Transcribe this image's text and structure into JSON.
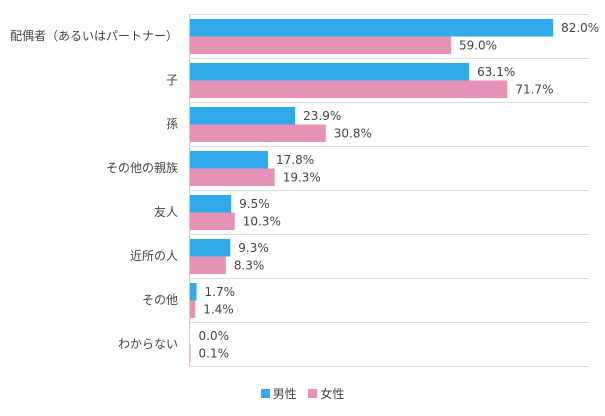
{
  "chart_data": {
    "type": "bar",
    "orientation": "horizontal",
    "categories": [
      "配偶者（あるいはパートナー）",
      "子",
      "孫",
      "その他の親族",
      "友人",
      "近所の人",
      "その他",
      "わからない"
    ],
    "series": [
      {
        "name": "男性",
        "color": "#30aaea",
        "values": [
          82.0,
          63.1,
          23.9,
          17.8,
          9.5,
          9.3,
          1.7,
          0.0
        ]
      },
      {
        "name": "女性",
        "color": "#e691b6",
        "values": [
          59.0,
          71.7,
          30.8,
          19.3,
          10.3,
          8.3,
          1.4,
          0.1
        ]
      }
    ],
    "value_format": "%",
    "xlim": [
      0,
      90
    ],
    "grid": true,
    "legend": "bottom"
  }
}
